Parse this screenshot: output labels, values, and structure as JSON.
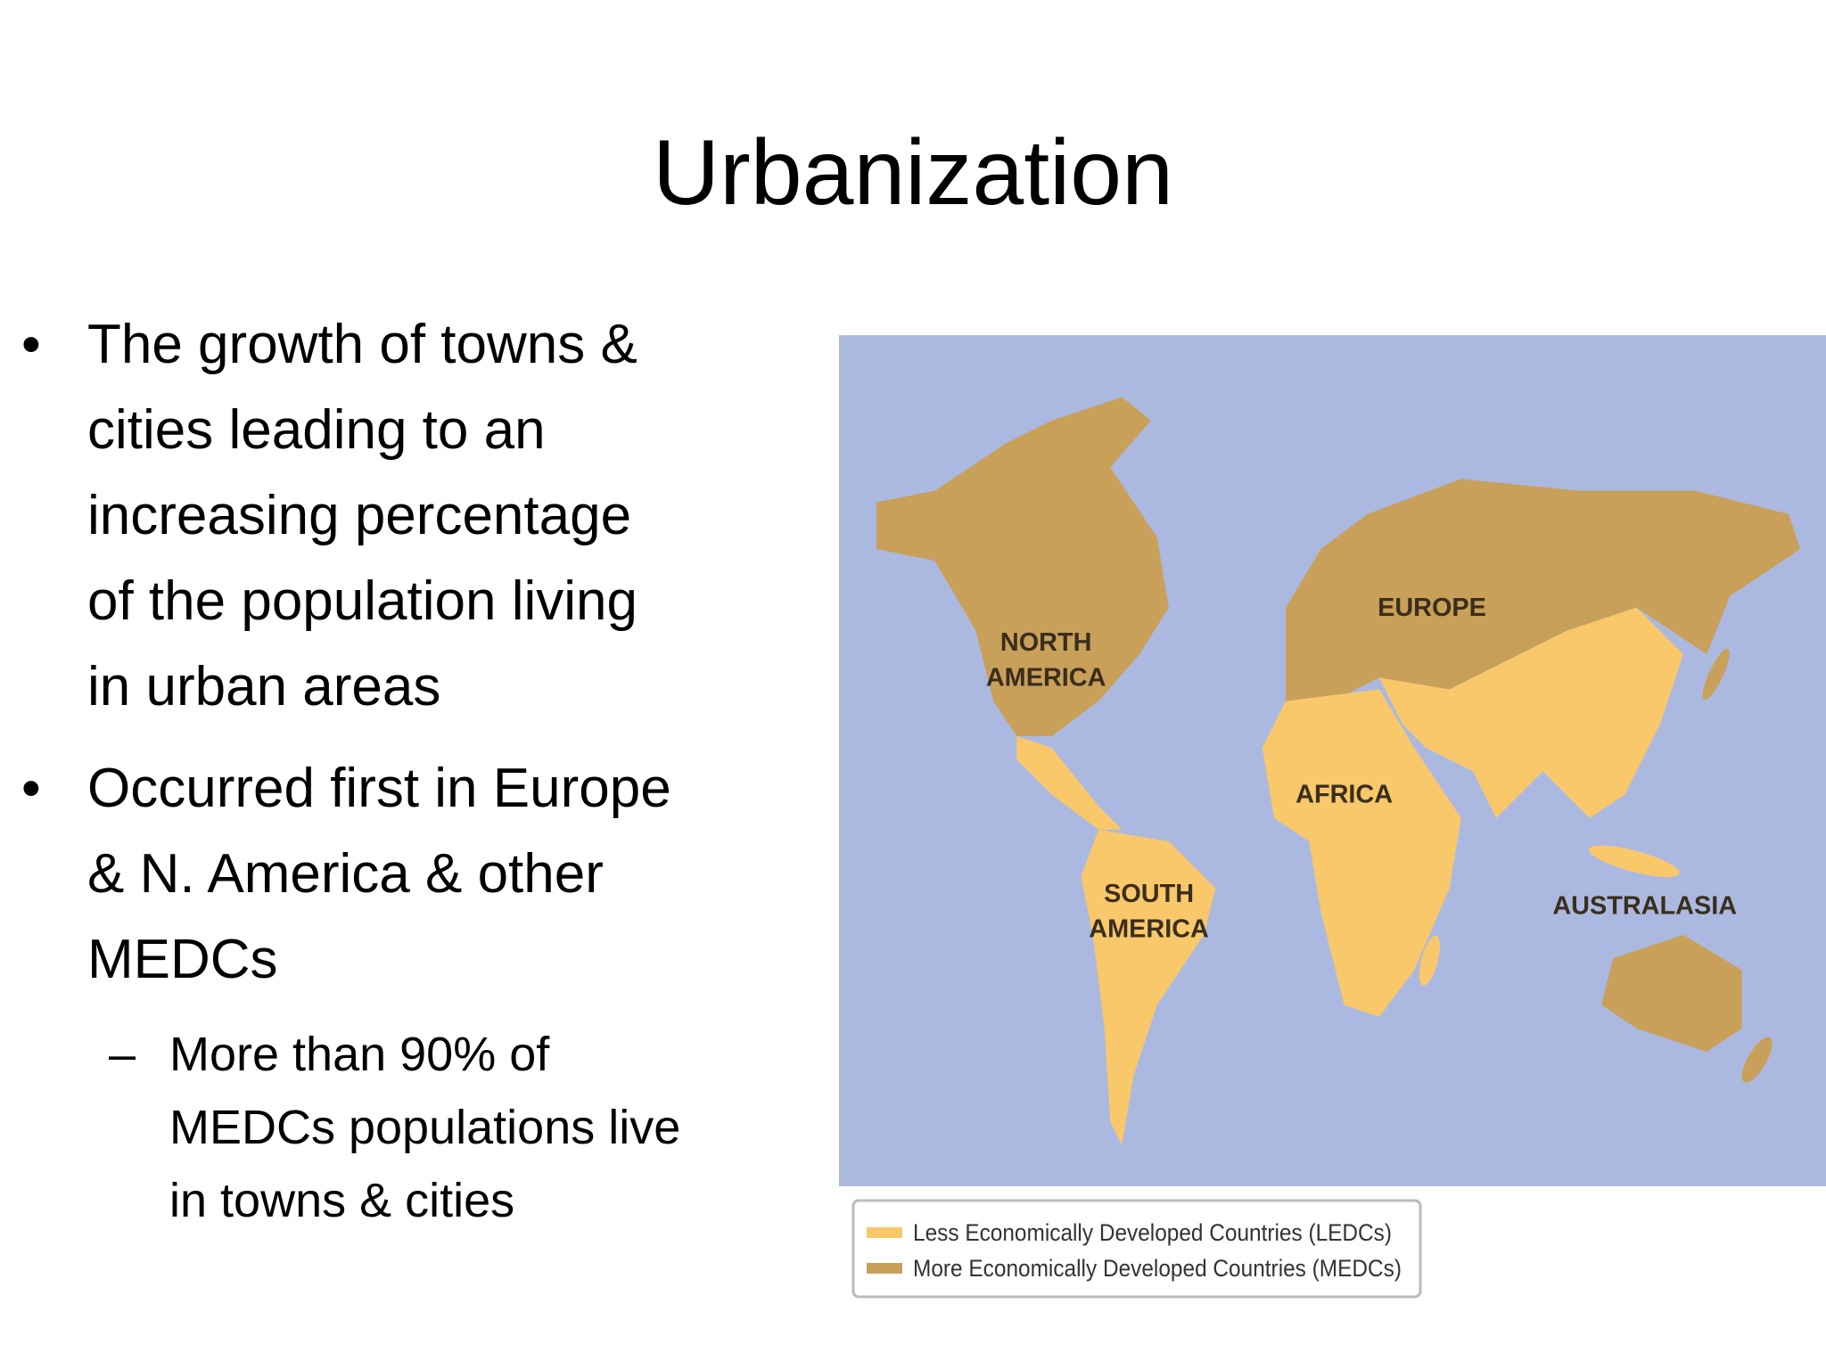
{
  "title": "Urbanization",
  "bullets": [
    {
      "lines": [
        "The growth of towns &",
        "cities leading to an",
        "increasing percentage",
        "of the population living",
        "in urban areas"
      ]
    },
    {
      "lines": [
        "Occurred first in Europe",
        "& N. America & other",
        "MEDCs"
      ],
      "sub": {
        "lines": [
          "More than 90% of",
          "MEDCs populations live",
          "in towns & cities"
        ]
      }
    }
  ],
  "map": {
    "labels": {
      "north_america": [
        "NORTH",
        "AMERICA"
      ],
      "europe": [
        "EUROPE"
      ],
      "africa": [
        "AFRICA"
      ],
      "south_america": [
        "SOUTH",
        "AMERICA"
      ],
      "australasia": [
        "AUSTRALASIA"
      ]
    },
    "legend": [
      "Less Economically Developed Countries (LEDCs)",
      "More Economically Developed Countries (MEDCs)"
    ]
  }
}
